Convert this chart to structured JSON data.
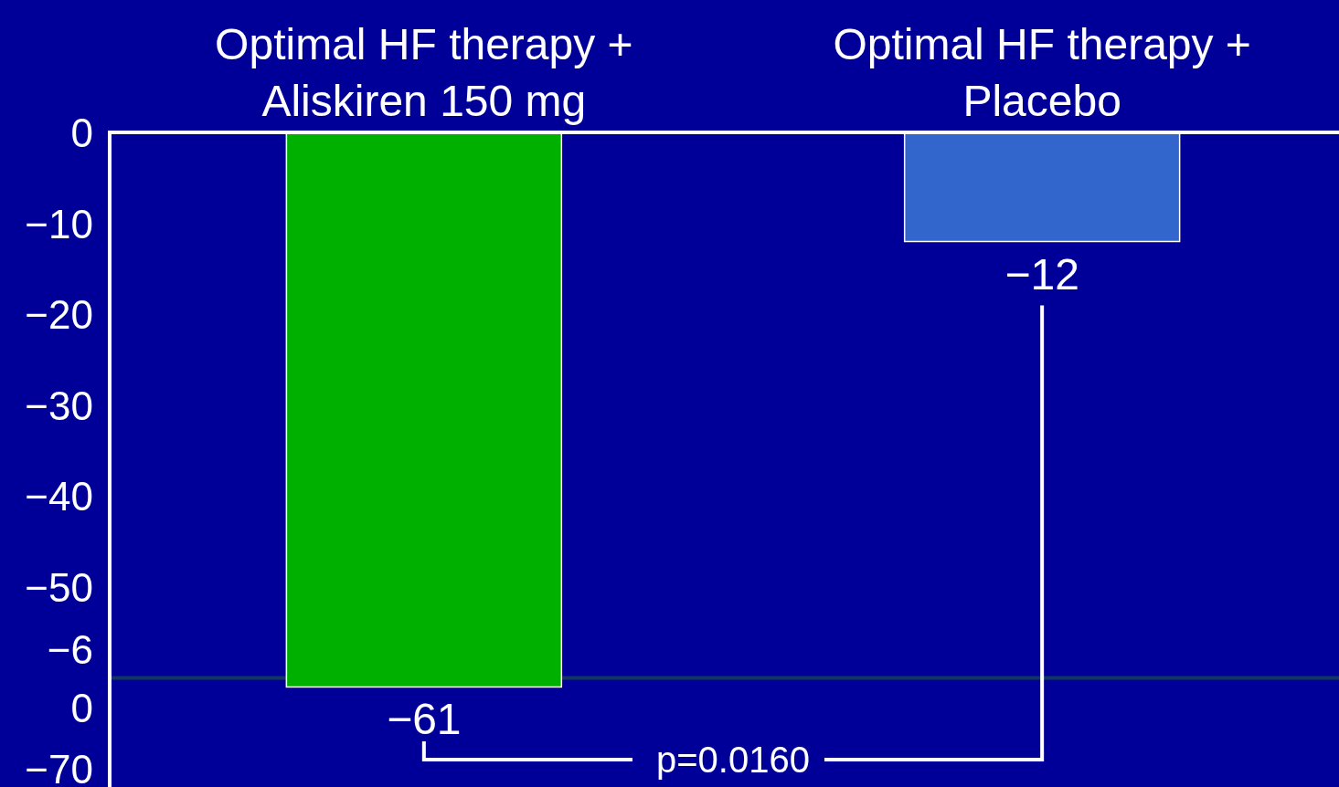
{
  "chart_data": {
    "type": "bar",
    "categories": [
      "Optimal HF therapy +\nAliskiren 150 mg",
      "Optimal HF therapy +\nPlacebo"
    ],
    "series": [
      {
        "colors": [
          "#00b000",
          "#3366cc"
        ],
        "values": [
          -61,
          -12
        ]
      }
    ],
    "data_labels": true,
    "ylim": [
      -72,
      0
    ],
    "yticks": [
      0,
      {
        "value": -10,
        "label": "−10"
      },
      {
        "value": -20,
        "label": "−20"
      },
      {
        "value": -30,
        "label": "−30"
      },
      {
        "value": -40,
        "label": "−40"
      },
      {
        "value": -50,
        "label": "−50"
      },
      {
        "value": -60,
        "label": "−6\n0"
      },
      {
        "value": -70,
        "label": "−70"
      }
    ],
    "ref_lines": [
      {
        "axis": "y",
        "value": -60,
        "color": "#10385a"
      }
    ],
    "annotations": [
      "p=0.0160"
    ]
  }
}
